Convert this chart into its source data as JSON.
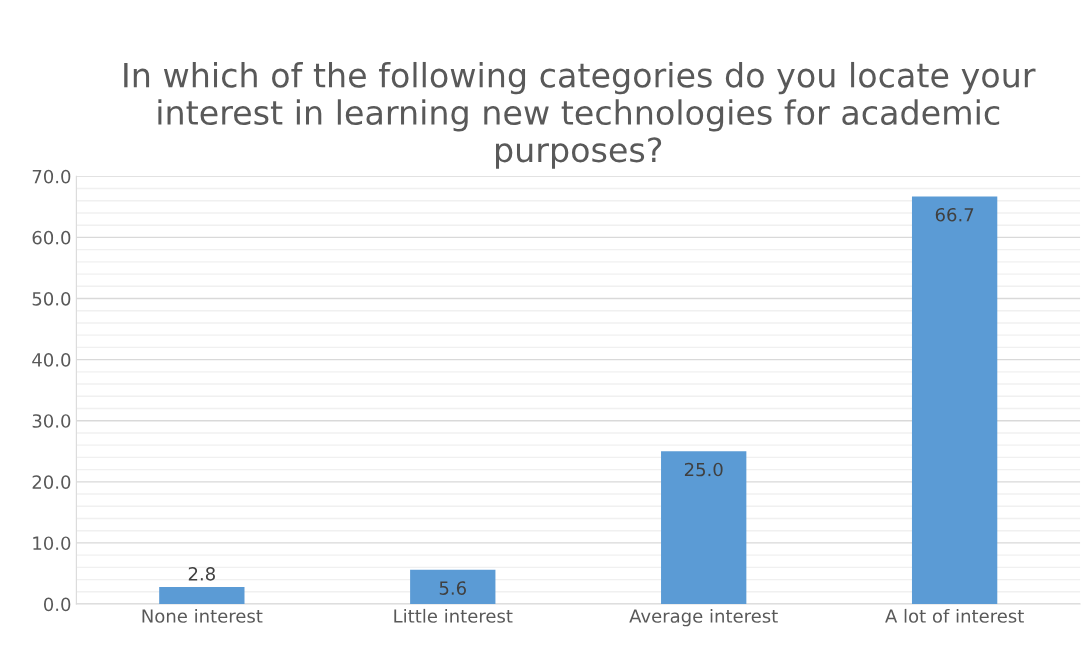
{
  "chart_data": {
    "type": "bar",
    "title": "In which of the following categories do you locate your interest in learning new technologies for academic purposes?",
    "categories": [
      "None interest",
      "Little interest",
      "Average interest",
      "A lot of interest"
    ],
    "values": [
      2.8,
      5.6,
      25.0,
      66.7
    ],
    "color": "#5b9bd5",
    "value_labels": [
      "2.8",
      "5.6",
      "25.0",
      "66.7"
    ],
    "grid": true,
    "ylim": [
      0,
      70
    ],
    "yticks": [
      {
        "value": 0,
        "label": "0.0"
      },
      {
        "value": 2,
        "label": null
      },
      {
        "value": 4,
        "label": null
      },
      {
        "value": 6,
        "label": null
      },
      {
        "value": 8,
        "label": null
      },
      {
        "value": 10,
        "label": "10.0"
      },
      {
        "value": 12,
        "label": null
      },
      {
        "value": 14,
        "label": null
      },
      {
        "value": 16,
        "label": null
      },
      {
        "value": 18,
        "label": null
      },
      {
        "value": 20,
        "label": "20.0"
      },
      {
        "value": 22,
        "label": null
      },
      {
        "value": 24,
        "label": null
      },
      {
        "value": 26,
        "label": null
      },
      {
        "value": 28,
        "label": null
      },
      {
        "value": 30,
        "label": "30.0"
      },
      {
        "value": 32,
        "label": null
      },
      {
        "value": 34,
        "label": null
      },
      {
        "value": 36,
        "label": null
      },
      {
        "value": 38,
        "label": null
      },
      {
        "value": 40,
        "label": "40.0"
      },
      {
        "value": 42,
        "label": null
      },
      {
        "value": 44,
        "label": null
      },
      {
        "value": 46,
        "label": null
      },
      {
        "value": 48,
        "label": null
      },
      {
        "value": 50,
        "label": "50.0"
      },
      {
        "value": 52,
        "label": null
      },
      {
        "value": 54,
        "label": null
      },
      {
        "value": 56,
        "label": null
      },
      {
        "value": 58,
        "label": null
      },
      {
        "value": 60,
        "label": "60.0"
      },
      {
        "value": 62,
        "label": null
      },
      {
        "value": 64,
        "label": null
      },
      {
        "value": 66,
        "label": null
      },
      {
        "value": 68,
        "label": null
      },
      {
        "value": 70,
        "label": "70.0"
      }
    ]
  }
}
